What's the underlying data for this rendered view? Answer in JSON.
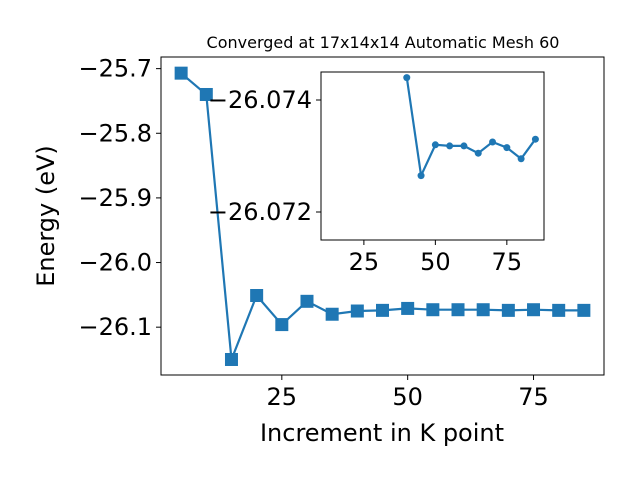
{
  "chart_data": [
    {
      "type": "line",
      "title": "Converged at 17x14x14 Automatic Mesh 60",
      "xlabel": "Increment in K point",
      "ylabel": "Energy (eV)",
      "xlim": [
        1.0,
        89.0
      ],
      "ylim": [
        -26.174,
        -25.682
      ],
      "xticks": [
        25,
        50,
        75
      ],
      "yticks": [
        -25.7,
        -25.8,
        -25.9,
        -26.0,
        -26.1
      ],
      "ytick_labels": [
        "−25.7",
        "−25.8",
        "−25.9",
        "−26.0",
        "−26.1"
      ],
      "grid": false,
      "color": "#1f77b4",
      "marker": "square",
      "series": [
        {
          "x": [
            5,
            10,
            15,
            20,
            25,
            30,
            35,
            40,
            45,
            50,
            55,
            60,
            65,
            70,
            75,
            80,
            85
          ],
          "y": [
            -25.707,
            -25.74,
            -26.15,
            -26.051,
            -26.096,
            -26.06,
            -26.08,
            -26.075,
            -26.074,
            -26.071,
            -26.073,
            -26.073,
            -26.073,
            -26.074,
            -26.073,
            -26.074,
            -26.074
          ]
        }
      ]
    },
    {
      "type": "line",
      "title": "",
      "xlabel": "",
      "ylabel": "",
      "xlim": [
        10.0,
        88.0
      ],
      "ylim": [
        -26.0715,
        -26.0745
      ],
      "xticks": [
        25,
        50,
        75
      ],
      "yticks": [
        -26.074,
        -26.072
      ],
      "ytick_labels": [
        "−26.074",
        "−26.072"
      ],
      "grid": false,
      "color": "#1f77b4",
      "marker": "circle",
      "series": [
        {
          "x": [
            40,
            45,
            50,
            55,
            60,
            65,
            70,
            75,
            80,
            85
          ],
          "y": [
            -26.0744,
            -26.07265,
            -26.0732,
            -26.07318,
            -26.07318,
            -26.07305,
            -26.07325,
            -26.07315,
            -26.07295,
            -26.0733
          ]
        }
      ]
    }
  ]
}
